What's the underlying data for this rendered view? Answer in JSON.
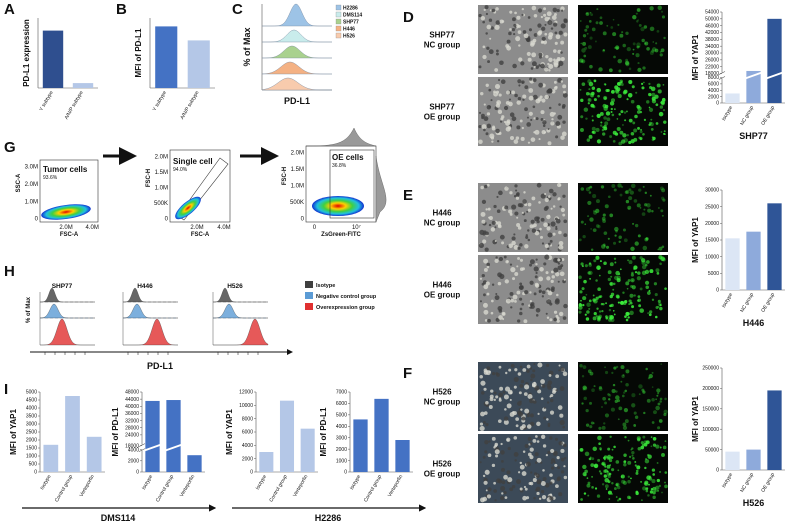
{
  "panel_letters": [
    "A",
    "B",
    "C",
    "D",
    "E",
    "F",
    "G",
    "H",
    "I"
  ],
  "bar_charts": [
    {
      "ylabel": "PD-L1 expression",
      "categories": [
        "Y subtype",
        "A/N/P subtype"
      ],
      "values": [
        0.82,
        0.07
      ],
      "colors": [
        "#2f4f8f",
        "#b4c7e7"
      ],
      "ylim": [
        0,
        1
      ]
    },
    {
      "ylabel": "MFI of PD-L1",
      "categories": [
        "Y subtype",
        "A/N/P subtype"
      ],
      "values": [
        0.88,
        0.68
      ],
      "colors": [
        "#4472c4",
        "#b4c7e7"
      ],
      "ylim": [
        0,
        1
      ]
    },
    {
      "ylabel": "MFI of YAP1",
      "xlabel": "SHP77",
      "categories": [
        "Isotype",
        "NC group",
        "OE group"
      ],
      "values": [
        3000,
        19500,
        50000
      ],
      "colors": [
        "#dce6f5",
        "#8eaadb",
        "#2f5597"
      ],
      "ylim": [
        0,
        54000
      ],
      "axis_break": [
        8000,
        18000
      ],
      "yticks": [
        0,
        2000,
        4000,
        6000,
        8000,
        18000,
        22000,
        26000,
        30000,
        34000,
        38000,
        42000,
        46000,
        50000,
        54000
      ]
    },
    {
      "ylabel": "MFI of YAP1",
      "xlabel": "H446",
      "categories": [
        "Isotype",
        "NC group",
        "OE group"
      ],
      "values": [
        15500,
        17500,
        26000
      ],
      "colors": [
        "#dce6f5",
        "#8eaadb",
        "#2f5597"
      ],
      "ylim": [
        0,
        30000
      ],
      "yticks": [
        0,
        5000,
        10000,
        15000,
        20000,
        25000,
        30000
      ]
    },
    {
      "ylabel": "MFI of YAP1",
      "xlabel": "H526",
      "categories": [
        "Isotype",
        "NC group",
        "OE group"
      ],
      "values": [
        45000,
        50000,
        195000
      ],
      "colors": [
        "#dce6f5",
        "#8eaadb",
        "#2f5597"
      ],
      "ylim": [
        0,
        250000
      ],
      "yticks": [
        0,
        50000,
        100000,
        150000,
        200000,
        250000
      ]
    },
    {
      "ylabel": "MFI of YAP1",
      "categories": [
        "Isotype",
        "Control group",
        "Verteporfin"
      ],
      "values": [
        1700,
        4750,
        2200
      ],
      "colors": [
        "#b4c7e7",
        "#b4c7e7",
        "#b4c7e7"
      ],
      "ylim": [
        0,
        5000
      ],
      "yticks": [
        0,
        500,
        1000,
        1500,
        2000,
        2500,
        3000,
        3500,
        4000,
        4500,
        5000
      ]
    },
    {
      "ylabel": "MFI of PD-L1",
      "categories": [
        "Isotype",
        "Control group",
        "Verteporfin"
      ],
      "values": [
        43000,
        43500,
        3000
      ],
      "colors": [
        "#4472c4",
        "#4472c4",
        "#4472c4"
      ],
      "ylim": [
        0,
        48000
      ],
      "axis_break": [
        4000,
        18000
      ],
      "yticks": [
        0,
        2000,
        4000,
        18000,
        24000,
        28000,
        32000,
        36000,
        40000,
        44000,
        48000
      ]
    },
    {
      "ylabel": "MFI of YAP1",
      "categories": [
        "Isotype",
        "Control group",
        "Verteporfin"
      ],
      "values": [
        3000,
        10700,
        6500
      ],
      "colors": [
        "#b4c7e7",
        "#b4c7e7",
        "#b4c7e7"
      ],
      "ylim": [
        0,
        12000
      ],
      "yticks": [
        0,
        2000,
        4000,
        6000,
        8000,
        10000,
        12000
      ]
    },
    {
      "ylabel": "MFI of PD-L1",
      "categories": [
        "Isotype",
        "Control group",
        "Verteporfin"
      ],
      "values": [
        4600,
        6400,
        2800
      ],
      "colors": [
        "#4472c4",
        "#4472c4",
        "#4472c4"
      ],
      "ylim": [
        0,
        7000
      ],
      "yticks": [
        0,
        1000,
        2000,
        3000,
        4000,
        5000,
        6000,
        7000
      ]
    }
  ],
  "panel_c": {
    "ylabel": "% of Max",
    "xlabel": "PD-L1",
    "legend": [
      "H2286",
      "DMS114",
      "SHP77",
      "H446",
      "H526"
    ],
    "colors": [
      "#9dc3e6",
      "#c9ecec",
      "#a9d18e",
      "#f4b183",
      "#f8cbad"
    ]
  },
  "image_labels": [
    [
      "SHP77",
      "NC group"
    ],
    [
      "SHP77",
      "OE group"
    ],
    [
      "H446",
      "NC group"
    ],
    [
      "H446",
      "OE group"
    ],
    [
      "H526",
      "NC group"
    ],
    [
      "H526",
      "OE group"
    ]
  ],
  "panel_g": [
    {
      "ylabel": "SSC-A",
      "xlabel": "FSC-A",
      "yticks": [
        "0",
        "1.0M",
        "2.0M",
        "3.0M"
      ],
      "xticks": [
        "2.0M",
        "4.0M"
      ],
      "gate": "Tumor cells",
      "percent": "93.6%"
    },
    {
      "ylabel": "FSC-H",
      "xlabel": "FSC-A",
      "yticks": [
        "0",
        "500K",
        "1.0M",
        "1.5M",
        "2.0M"
      ],
      "xticks": [
        "2.0M",
        "4.0M"
      ],
      "gate": "Single cell",
      "percent": "94.0%"
    },
    {
      "ylabel": "FSC-H",
      "xlabel": "ZsGreen-FITC",
      "yticks": [
        "0",
        "500K",
        "1.0M",
        "1.5M",
        "2.0M"
      ],
      "xticks": [
        "0",
        "10⁷"
      ],
      "gate": "OE cells",
      "percent": "36.8%"
    }
  ],
  "panel_h": {
    "titles": [
      "SHP77",
      "H446",
      "H526"
    ],
    "ylabel": "% of Max",
    "xlabel": "PD-L1",
    "legend": [
      "Isotype",
      "Negative control group",
      "Overexpression group"
    ],
    "colors": [
      "#404040",
      "#5b9bd5",
      "#e03030"
    ]
  },
  "panel_i_groups": [
    "DMS114",
    "H2286"
  ]
}
